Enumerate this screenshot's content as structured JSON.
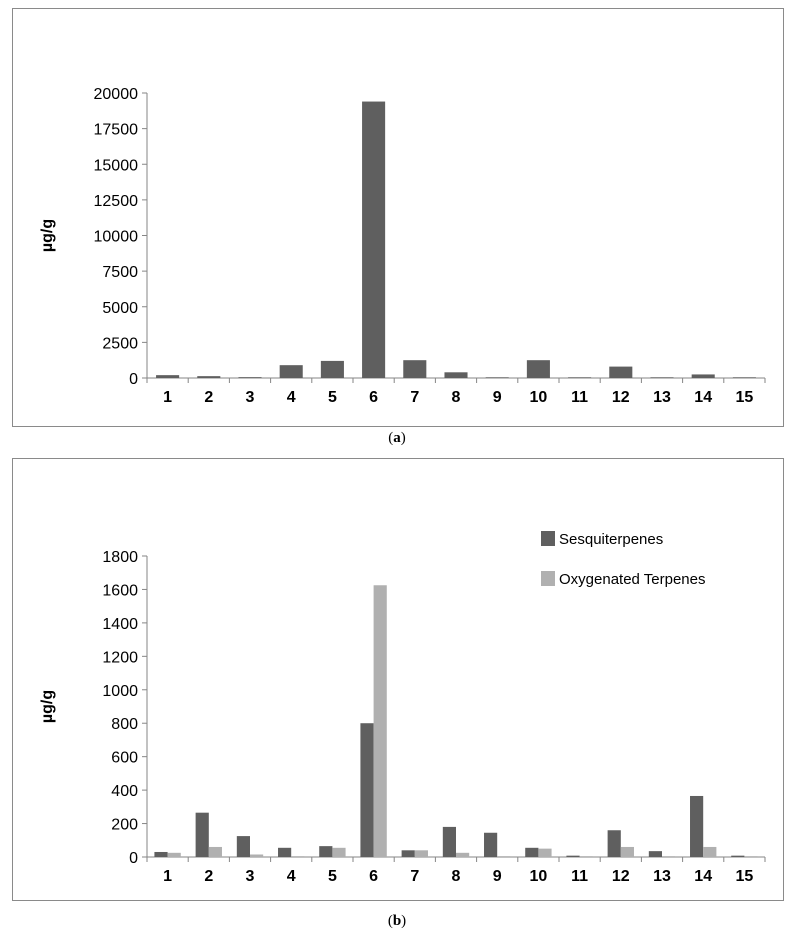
{
  "chart_data": [
    {
      "type": "bar",
      "panel": "a",
      "caption": "(a)",
      "categories": [
        "1",
        "2",
        "3",
        "4",
        "5",
        "6",
        "7",
        "8",
        "9",
        "10",
        "11",
        "12",
        "13",
        "14",
        "15"
      ],
      "values": [
        200,
        130,
        60,
        900,
        1200,
        19400,
        1250,
        400,
        50,
        1250,
        50,
        800,
        50,
        250,
        50
      ],
      "ylabel": "µg/g",
      "ylim": [
        0,
        20000
      ],
      "yticks": [
        "0",
        "2500",
        "5000",
        "7500",
        "10000",
        "12500",
        "15000",
        "17500",
        "20000"
      ],
      "color": "#5f5f5f",
      "grid": false
    },
    {
      "type": "bar",
      "panel": "b",
      "caption": "(b)",
      "categories": [
        "1",
        "2",
        "3",
        "4",
        "5",
        "6",
        "7",
        "8",
        "9",
        "10",
        "11",
        "12",
        "13",
        "14",
        "15"
      ],
      "series": [
        {
          "name": "Sesquiterpenes",
          "color": "#5f5f5f",
          "values": [
            30,
            265,
            125,
            55,
            65,
            800,
            40,
            180,
            145,
            55,
            8,
            160,
            35,
            365,
            8
          ]
        },
        {
          "name": "Oxygenated Terpenes",
          "color": "#b0b0b0",
          "values": [
            25,
            60,
            15,
            5,
            55,
            1625,
            40,
            25,
            5,
            50,
            5,
            60,
            5,
            60,
            5
          ]
        }
      ],
      "ylabel": "µg/g",
      "ylim": [
        0,
        1800
      ],
      "yticks": [
        "0",
        "200",
        "400",
        "600",
        "800",
        "1000",
        "1200",
        "1400",
        "1600",
        "1800"
      ],
      "legend_position": "top-right",
      "grid": false
    }
  ]
}
